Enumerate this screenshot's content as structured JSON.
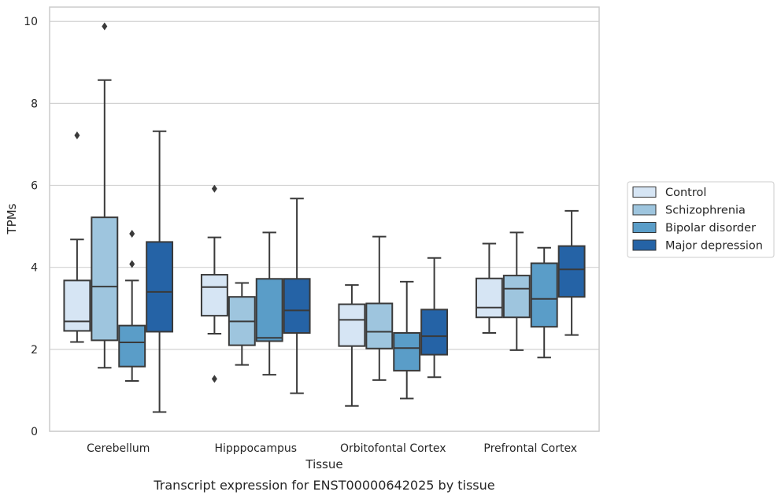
{
  "caption": "Transcript expression for ENST00000642025 by tissue",
  "chart_data": {
    "type": "box",
    "title": "",
    "xlabel": "Tissue",
    "ylabel": "TPMs",
    "ylim": [
      0,
      10.35
    ],
    "yticks": [
      0,
      2,
      4,
      6,
      8,
      10
    ],
    "grid": "horizontal",
    "legend_position": "right",
    "categories": [
      "Cerebellum",
      "Hipppocampus",
      "Orbitofontal Cortex",
      "Prefrontal Cortex"
    ],
    "series": [
      {
        "name": "Control",
        "color": "#d6e5f4",
        "boxes": [
          {
            "whislo": 2.18,
            "q1": 2.45,
            "med": 2.68,
            "q3": 3.68,
            "whishi": 4.68,
            "fliers": [
              7.22
            ]
          },
          {
            "whislo": 2.38,
            "q1": 2.82,
            "med": 3.52,
            "q3": 3.82,
            "whishi": 4.73,
            "fliers": [
              5.92,
              1.28
            ]
          },
          {
            "whislo": 0.62,
            "q1": 2.08,
            "med": 2.72,
            "q3": 3.1,
            "whishi": 3.57,
            "fliers": []
          },
          {
            "whislo": 2.4,
            "q1": 2.78,
            "med": 3.02,
            "q3": 3.73,
            "whishi": 4.58,
            "fliers": []
          }
        ]
      },
      {
        "name": "Schizophrenia",
        "color": "#9ec5de",
        "boxes": [
          {
            "whislo": 1.55,
            "q1": 2.22,
            "med": 3.53,
            "q3": 5.22,
            "whishi": 8.57,
            "fliers": [
              9.88
            ]
          },
          {
            "whislo": 1.62,
            "q1": 2.1,
            "med": 2.68,
            "q3": 3.28,
            "whishi": 3.62,
            "fliers": []
          },
          {
            "whislo": 1.25,
            "q1": 2.02,
            "med": 2.43,
            "q3": 3.12,
            "whishi": 4.75,
            "fliers": []
          },
          {
            "whislo": 1.98,
            "q1": 2.78,
            "med": 3.48,
            "q3": 3.8,
            "whishi": 4.85,
            "fliers": []
          }
        ]
      },
      {
        "name": "Bipolar disorder",
        "color": "#5a9dc8",
        "boxes": [
          {
            "whislo": 1.23,
            "q1": 1.58,
            "med": 2.17,
            "q3": 2.58,
            "whishi": 3.68,
            "fliers": [
              4.82,
              4.08
            ]
          },
          {
            "whislo": 1.38,
            "q1": 2.2,
            "med": 2.28,
            "q3": 3.72,
            "whishi": 4.85,
            "fliers": []
          },
          {
            "whislo": 0.8,
            "q1": 1.48,
            "med": 2.03,
            "q3": 2.4,
            "whishi": 3.65,
            "fliers": []
          },
          {
            "whislo": 1.8,
            "q1": 2.55,
            "med": 3.23,
            "q3": 4.1,
            "whishi": 4.48,
            "fliers": []
          }
        ]
      },
      {
        "name": "Major depression",
        "color": "#2563a6",
        "boxes": [
          {
            "whislo": 0.47,
            "q1": 2.43,
            "med": 3.4,
            "q3": 4.62,
            "whishi": 7.32,
            "fliers": []
          },
          {
            "whislo": 0.93,
            "q1": 2.4,
            "med": 2.95,
            "q3": 3.72,
            "whishi": 5.68,
            "fliers": []
          },
          {
            "whislo": 1.32,
            "q1": 1.87,
            "med": 2.32,
            "q3": 2.97,
            "whishi": 4.23,
            "fliers": []
          },
          {
            "whislo": 2.35,
            "q1": 3.28,
            "med": 3.95,
            "q3": 4.52,
            "whishi": 5.38,
            "fliers": []
          }
        ]
      }
    ]
  }
}
